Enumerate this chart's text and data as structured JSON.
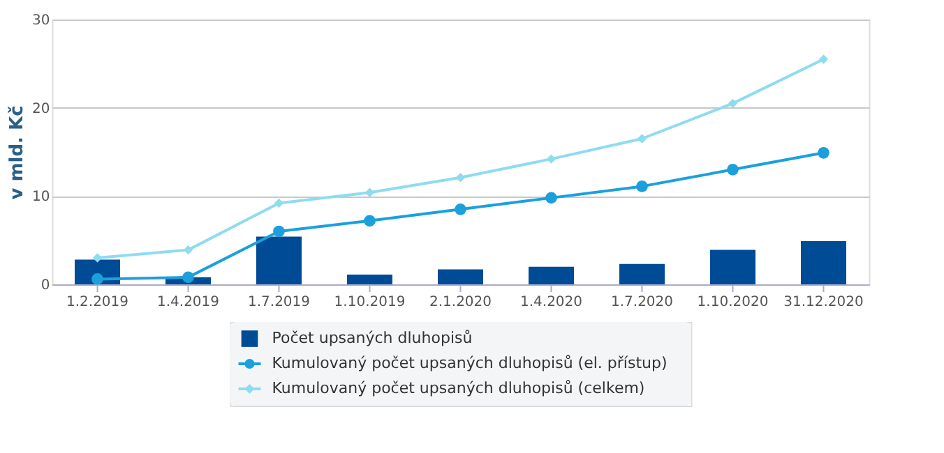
{
  "chart_data": {
    "type": "bar",
    "ylabel": "v mld. Kč",
    "categories": [
      "1.2.2019",
      "1.4.2019",
      "1.7.2019",
      "1.10.2019",
      "2.1.2020",
      "1.4.2020",
      "1.7.2020",
      "1.10.2020",
      "31.12.2020"
    ],
    "series": [
      {
        "name": "Počet upsaných dluhopisů",
        "color": "#004b96",
        "values": [
          2.8,
          0.8,
          5.4,
          1.1,
          1.7,
          2.0,
          2.3,
          3.9,
          4.9
        ]
      },
      {
        "name": "Kumulovaný počet upsaných dluhopisů (el. přístup)",
        "type": "line",
        "marker": "circle",
        "color": "#1ba0dc",
        "values": [
          0.6,
          0.8,
          6.0,
          7.2,
          8.5,
          9.8,
          11.1,
          13.0,
          14.9
        ]
      },
      {
        "name": "Kumulovaný počet upsaných dluhopisů (celkem)",
        "type": "line",
        "marker": "diamond",
        "color": "#8edcf0",
        "values": [
          3.0,
          3.9,
          9.2,
          10.4,
          12.1,
          14.2,
          16.5,
          20.5,
          25.5
        ]
      }
    ],
    "ylim": [
      0,
      30
    ],
    "yticks": [
      0,
      10,
      20,
      30
    ],
    "grid": "y",
    "legend": "bottom"
  }
}
